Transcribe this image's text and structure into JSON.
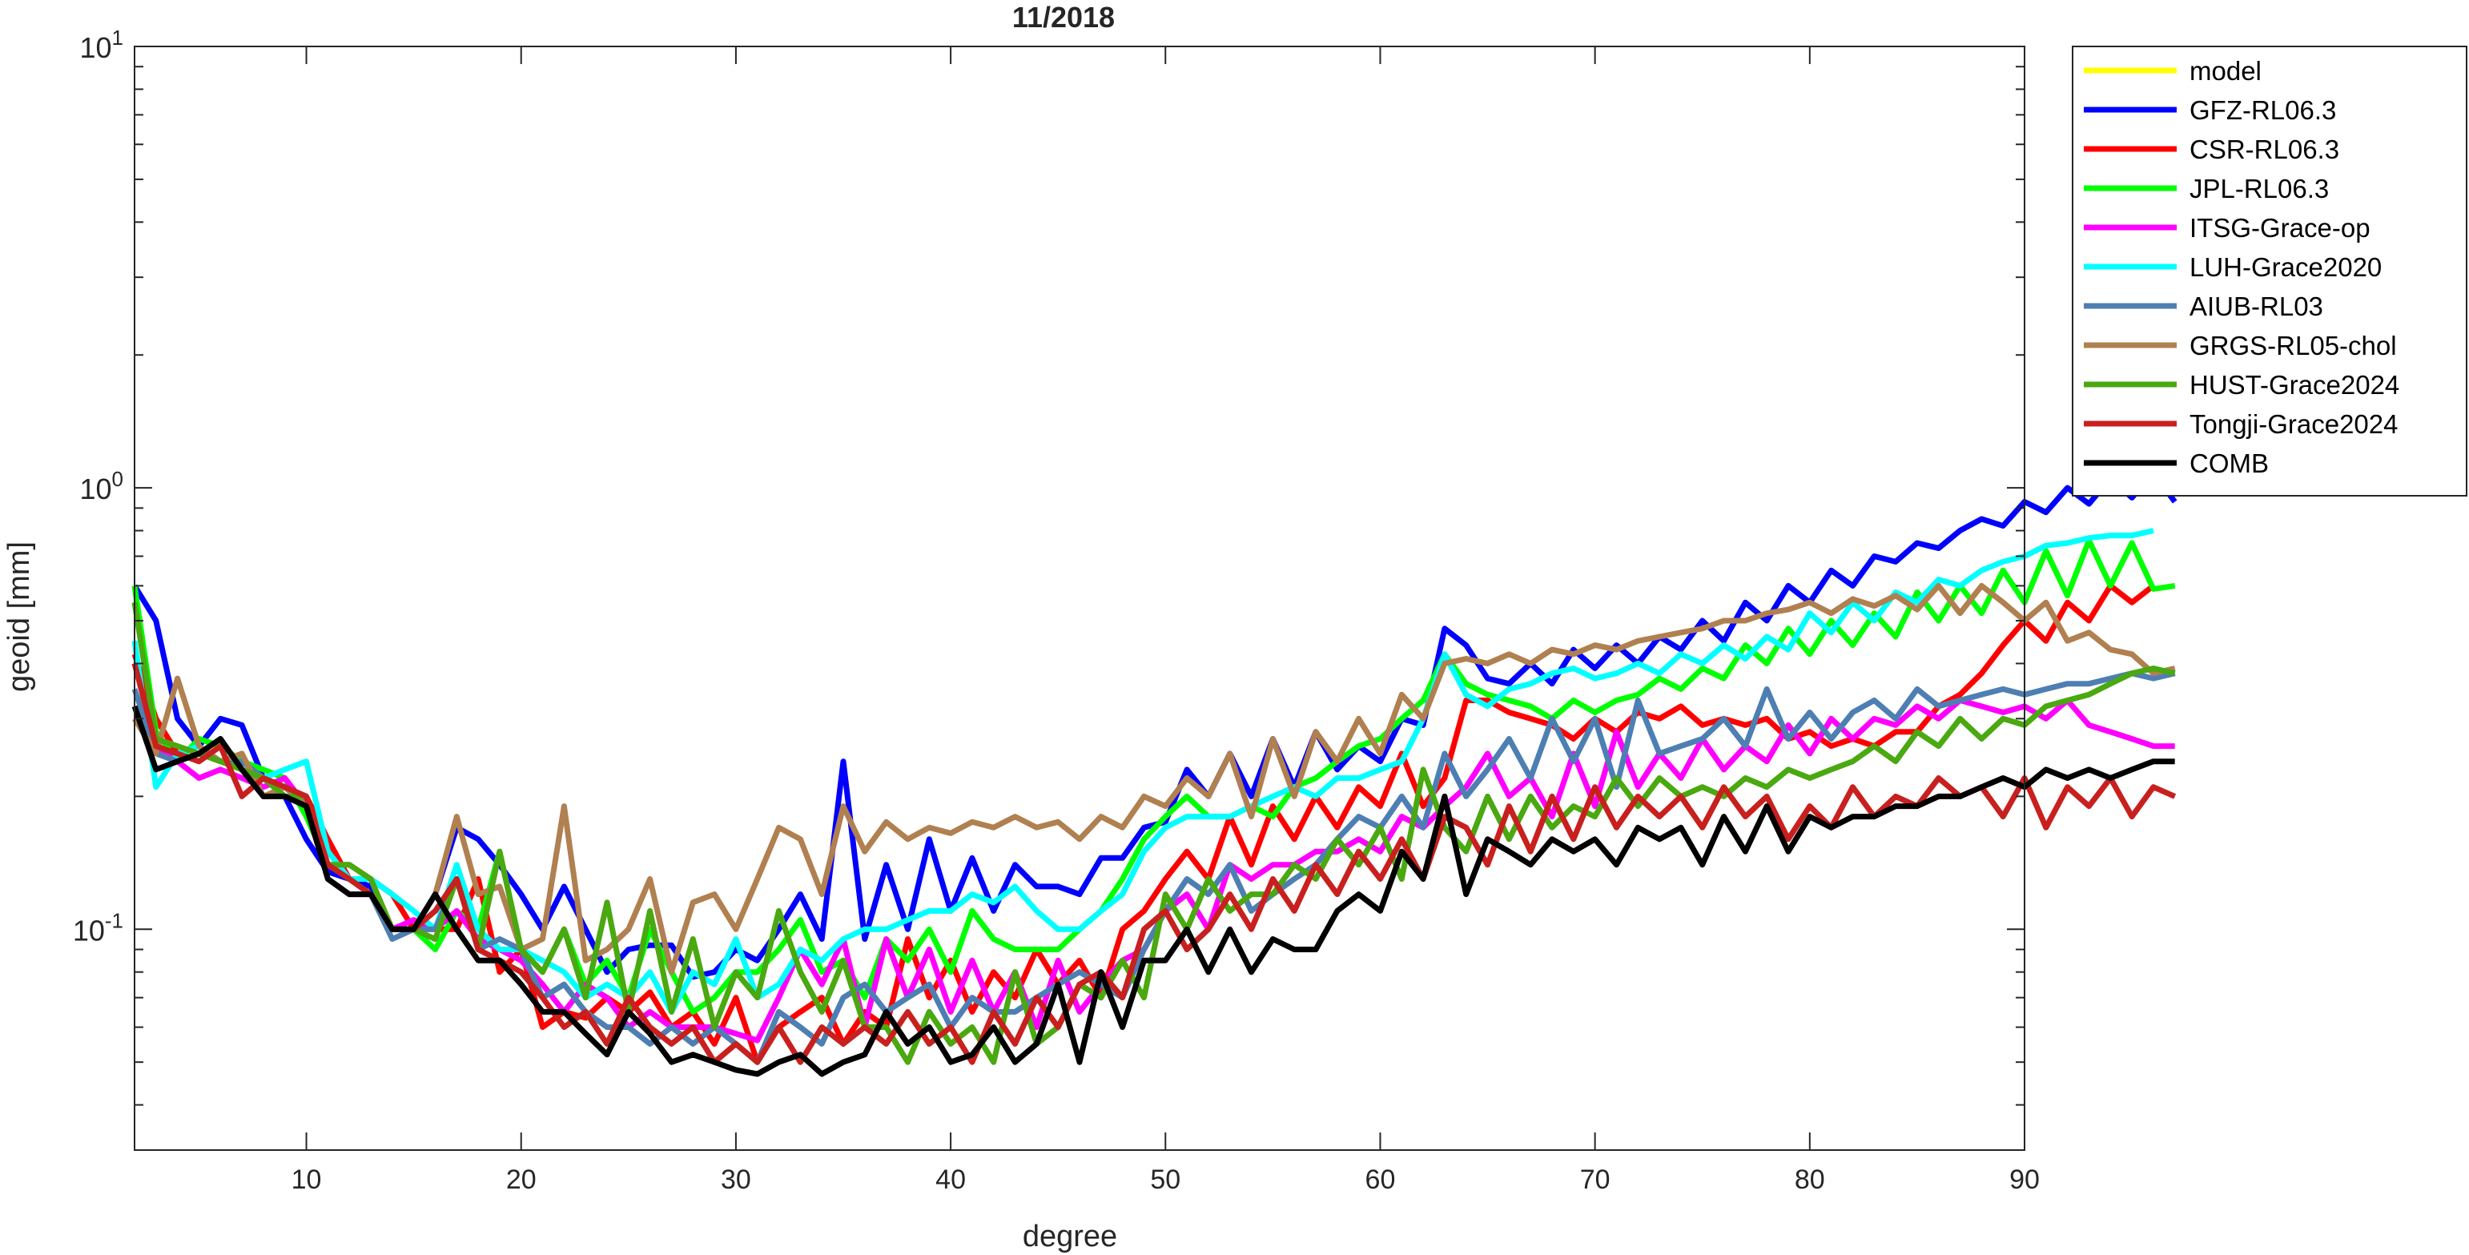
{
  "chart_data": {
    "type": "line",
    "title": "11/2018",
    "xlabel": "degree",
    "ylabel": "geoid [mm]",
    "xlim": [
      2,
      90
    ],
    "ylim": [
      0.0316,
      10
    ],
    "yscale": "log",
    "grid": false,
    "legend_position": "outside-top-right",
    "x_ticks": [
      "10",
      "20",
      "30",
      "40",
      "50",
      "60",
      "70",
      "80",
      "90"
    ],
    "y_ticks": [
      {
        "base": "10",
        "exp": "-1"
      },
      {
        "base": "10",
        "exp": "0"
      },
      {
        "base": "10",
        "exp": "1"
      }
    ],
    "x_start": 2,
    "series": [
      {
        "name": "model",
        "color": "#ffff00",
        "values": []
      },
      {
        "name": "GFZ-RL06.3",
        "color": "#0000ff",
        "values": [
          0.6,
          0.5,
          0.3,
          0.26,
          0.3,
          0.29,
          0.22,
          0.2,
          0.16,
          0.135,
          0.13,
          0.125,
          0.1,
          0.1,
          0.12,
          0.17,
          0.16,
          0.14,
          0.12,
          0.1,
          0.125,
          0.1,
          0.08,
          0.09,
          0.092,
          0.092,
          0.078,
          0.08,
          0.09,
          0.085,
          0.1,
          0.12,
          0.095,
          0.24,
          0.095,
          0.14,
          0.1,
          0.16,
          0.11,
          0.145,
          0.11,
          0.14,
          0.125,
          0.125,
          0.12,
          0.145,
          0.145,
          0.17,
          0.175,
          0.23,
          0.2,
          0.25,
          0.2,
          0.27,
          0.21,
          0.28,
          0.23,
          0.26,
          0.24,
          0.3,
          0.29,
          0.48,
          0.44,
          0.37,
          0.36,
          0.4,
          0.36,
          0.43,
          0.39,
          0.44,
          0.4,
          0.46,
          0.43,
          0.5,
          0.45,
          0.55,
          0.5,
          0.6,
          0.55,
          0.65,
          0.6,
          0.7,
          0.68,
          0.75,
          0.73,
          0.8,
          0.85,
          0.82,
          0.93,
          0.88,
          1.0,
          0.92,
          1.05,
          0.95,
          1.08,
          0.93
        ]
      },
      {
        "name": "CSR-RL06.3",
        "color": "#ff0000",
        "values": [
          0.42,
          0.3,
          0.25,
          0.24,
          0.26,
          0.24,
          0.22,
          0.21,
          0.2,
          0.16,
          0.13,
          0.13,
          0.12,
          0.1,
          0.1,
          0.1,
          0.13,
          0.08,
          0.09,
          0.06,
          0.065,
          0.063,
          0.07,
          0.065,
          0.072,
          0.06,
          0.065,
          0.055,
          0.07,
          0.05,
          0.06,
          0.065,
          0.07,
          0.055,
          0.065,
          0.06,
          0.095,
          0.07,
          0.085,
          0.065,
          0.08,
          0.07,
          0.09,
          0.075,
          0.085,
          0.07,
          0.1,
          0.11,
          0.13,
          0.15,
          0.13,
          0.18,
          0.14,
          0.19,
          0.16,
          0.2,
          0.17,
          0.21,
          0.19,
          0.25,
          0.19,
          0.22,
          0.33,
          0.33,
          0.31,
          0.3,
          0.29,
          0.27,
          0.3,
          0.28,
          0.31,
          0.3,
          0.32,
          0.29,
          0.3,
          0.29,
          0.3,
          0.27,
          0.28,
          0.26,
          0.27,
          0.26,
          0.28,
          0.28,
          0.32,
          0.34,
          0.38,
          0.44,
          0.5,
          0.45,
          0.55,
          0.5,
          0.6,
          0.55,
          0.6
        ]
      },
      {
        "name": "JPL-RL06.3",
        "color": "#00ff00",
        "values": [
          0.6,
          0.28,
          0.24,
          0.27,
          0.26,
          0.24,
          0.23,
          0.22,
          0.18,
          0.14,
          0.13,
          0.12,
          0.1,
          0.1,
          0.09,
          0.11,
          0.1,
          0.15,
          0.09,
          0.08,
          0.1,
          0.075,
          0.085,
          0.07,
          0.1,
          0.08,
          0.065,
          0.07,
          0.08,
          0.08,
          0.09,
          0.105,
          0.08,
          0.085,
          0.07,
          0.095,
          0.085,
          0.1,
          0.08,
          0.11,
          0.095,
          0.09,
          0.09,
          0.09,
          0.1,
          0.11,
          0.13,
          0.16,
          0.18,
          0.2,
          0.18,
          0.18,
          0.19,
          0.18,
          0.21,
          0.22,
          0.24,
          0.26,
          0.27,
          0.3,
          0.33,
          0.42,
          0.36,
          0.34,
          0.33,
          0.32,
          0.3,
          0.33,
          0.31,
          0.33,
          0.34,
          0.37,
          0.35,
          0.39,
          0.37,
          0.44,
          0.4,
          0.48,
          0.42,
          0.5,
          0.44,
          0.52,
          0.46,
          0.58,
          0.5,
          0.6,
          0.52,
          0.65,
          0.55,
          0.72,
          0.57,
          0.76,
          0.6,
          0.75,
          0.59,
          0.6
        ]
      },
      {
        "name": "ITSG-Grace-op",
        "color": "#ff00ff",
        "values": [
          0.4,
          0.26,
          0.24,
          0.22,
          0.23,
          0.22,
          0.21,
          0.22,
          0.19,
          0.13,
          0.12,
          0.12,
          0.1,
          0.105,
          0.1,
          0.11,
          0.095,
          0.09,
          0.085,
          0.075,
          0.065,
          0.075,
          0.07,
          0.06,
          0.065,
          0.06,
          0.06,
          0.06,
          0.058,
          0.056,
          0.07,
          0.09,
          0.075,
          0.095,
          0.06,
          0.095,
          0.07,
          0.09,
          0.065,
          0.085,
          0.065,
          0.08,
          0.06,
          0.085,
          0.065,
          0.075,
          0.085,
          0.09,
          0.11,
          0.12,
          0.1,
          0.14,
          0.13,
          0.14,
          0.14,
          0.15,
          0.15,
          0.16,
          0.15,
          0.18,
          0.17,
          0.19,
          0.21,
          0.25,
          0.2,
          0.22,
          0.18,
          0.25,
          0.19,
          0.28,
          0.21,
          0.25,
          0.22,
          0.27,
          0.23,
          0.26,
          0.24,
          0.29,
          0.25,
          0.3,
          0.27,
          0.3,
          0.29,
          0.32,
          0.3,
          0.33,
          0.32,
          0.31,
          0.32,
          0.3,
          0.33,
          0.29,
          0.28,
          0.27,
          0.26,
          0.26
        ]
      },
      {
        "name": "LUH-Grace2020",
        "color": "#00ffff",
        "values": [
          0.45,
          0.21,
          0.25,
          0.26,
          0.24,
          0.24,
          0.22,
          0.23,
          0.24,
          0.15,
          0.13,
          0.13,
          0.12,
          0.11,
          0.1,
          0.14,
          0.1,
          0.09,
          0.09,
          0.085,
          0.08,
          0.07,
          0.075,
          0.07,
          0.08,
          0.065,
          0.08,
          0.075,
          0.095,
          0.07,
          0.075,
          0.09,
          0.085,
          0.095,
          0.1,
          0.1,
          0.105,
          0.11,
          0.11,
          0.12,
          0.115,
          0.125,
          0.11,
          0.1,
          0.1,
          0.11,
          0.12,
          0.15,
          0.17,
          0.18,
          0.18,
          0.18,
          0.19,
          0.2,
          0.21,
          0.2,
          0.22,
          0.22,
          0.23,
          0.24,
          0.3,
          0.42,
          0.34,
          0.32,
          0.35,
          0.36,
          0.38,
          0.39,
          0.37,
          0.38,
          0.4,
          0.38,
          0.42,
          0.4,
          0.44,
          0.41,
          0.46,
          0.43,
          0.52,
          0.47,
          0.55,
          0.5,
          0.58,
          0.55,
          0.62,
          0.6,
          0.65,
          0.68,
          0.7,
          0.74,
          0.75,
          0.77,
          0.78,
          0.78,
          0.8
        ]
      },
      {
        "name": "AIUB-RL03",
        "color": "#4e7fb3",
        "values": [
          0.35,
          0.25,
          0.24,
          0.25,
          0.24,
          0.24,
          0.22,
          0.21,
          0.19,
          0.14,
          0.13,
          0.12,
          0.095,
          0.1,
          0.1,
          0.13,
          0.09,
          0.095,
          0.09,
          0.07,
          0.075,
          0.065,
          0.06,
          0.06,
          0.055,
          0.06,
          0.055,
          0.06,
          0.055,
          0.05,
          0.065,
          0.06,
          0.055,
          0.07,
          0.075,
          0.065,
          0.07,
          0.075,
          0.06,
          0.07,
          0.065,
          0.065,
          0.07,
          0.075,
          0.08,
          0.075,
          0.07,
          0.09,
          0.11,
          0.13,
          0.12,
          0.14,
          0.11,
          0.12,
          0.13,
          0.14,
          0.16,
          0.18,
          0.17,
          0.2,
          0.17,
          0.25,
          0.2,
          0.23,
          0.27,
          0.22,
          0.3,
          0.24,
          0.3,
          0.21,
          0.33,
          0.25,
          0.26,
          0.27,
          0.3,
          0.26,
          0.35,
          0.27,
          0.31,
          0.27,
          0.31,
          0.33,
          0.3,
          0.35,
          0.32,
          0.33,
          0.34,
          0.35,
          0.34,
          0.35,
          0.36,
          0.36,
          0.37,
          0.38,
          0.37,
          0.38
        ]
      },
      {
        "name": "GRGS-RL05-chol",
        "color": "#b08050",
        "values": [
          0.3,
          0.25,
          0.37,
          0.26,
          0.24,
          0.25,
          0.2,
          0.21,
          0.19,
          0.14,
          0.14,
          0.13,
          0.1,
          0.1,
          0.12,
          0.18,
          0.12,
          0.125,
          0.09,
          0.095,
          0.19,
          0.085,
          0.09,
          0.1,
          0.13,
          0.08,
          0.115,
          0.12,
          0.1,
          0.13,
          0.17,
          0.16,
          0.12,
          0.19,
          0.15,
          0.175,
          0.16,
          0.17,
          0.165,
          0.175,
          0.17,
          0.18,
          0.17,
          0.175,
          0.16,
          0.18,
          0.17,
          0.2,
          0.19,
          0.22,
          0.2,
          0.25,
          0.18,
          0.27,
          0.2,
          0.28,
          0.24,
          0.3,
          0.25,
          0.34,
          0.3,
          0.4,
          0.41,
          0.4,
          0.42,
          0.4,
          0.43,
          0.42,
          0.44,
          0.43,
          0.45,
          0.46,
          0.47,
          0.48,
          0.5,
          0.5,
          0.52,
          0.53,
          0.55,
          0.52,
          0.56,
          0.54,
          0.57,
          0.53,
          0.6,
          0.52,
          0.6,
          0.55,
          0.5,
          0.55,
          0.45,
          0.47,
          0.43,
          0.42,
          0.38,
          0.39
        ]
      },
      {
        "name": "HUST-Grace2024",
        "color": "#4aa810",
        "values": [
          0.55,
          0.27,
          0.26,
          0.25,
          0.24,
          0.23,
          0.22,
          0.2,
          0.2,
          0.14,
          0.14,
          0.13,
          0.1,
          0.1,
          0.095,
          0.13,
          0.09,
          0.15,
          0.09,
          0.08,
          0.1,
          0.07,
          0.115,
          0.065,
          0.11,
          0.065,
          0.095,
          0.06,
          0.08,
          0.07,
          0.11,
          0.08,
          0.065,
          0.085,
          0.06,
          0.06,
          0.05,
          0.065,
          0.055,
          0.06,
          0.05,
          0.08,
          0.055,
          0.06,
          0.075,
          0.07,
          0.085,
          0.07,
          0.12,
          0.1,
          0.13,
          0.11,
          0.12,
          0.12,
          0.14,
          0.13,
          0.16,
          0.14,
          0.17,
          0.13,
          0.23,
          0.17,
          0.15,
          0.2,
          0.16,
          0.2,
          0.17,
          0.19,
          0.18,
          0.22,
          0.19,
          0.22,
          0.2,
          0.21,
          0.2,
          0.22,
          0.21,
          0.23,
          0.22,
          0.23,
          0.24,
          0.26,
          0.24,
          0.28,
          0.26,
          0.3,
          0.27,
          0.3,
          0.29,
          0.32,
          0.33,
          0.34,
          0.36,
          0.38,
          0.39,
          0.38
        ]
      },
      {
        "name": "Tongji-Grace2024",
        "color": "#c8201e",
        "values": [
          0.4,
          0.26,
          0.25,
          0.24,
          0.26,
          0.2,
          0.22,
          0.21,
          0.2,
          0.14,
          0.13,
          0.12,
          0.1,
          0.1,
          0.11,
          0.13,
          0.09,
          0.085,
          0.08,
          0.07,
          0.06,
          0.065,
          0.055,
          0.07,
          0.06,
          0.055,
          0.06,
          0.05,
          0.055,
          0.05,
          0.06,
          0.05,
          0.06,
          0.055,
          0.06,
          0.055,
          0.065,
          0.055,
          0.06,
          0.05,
          0.065,
          0.055,
          0.07,
          0.06,
          0.075,
          0.08,
          0.07,
          0.1,
          0.11,
          0.09,
          0.1,
          0.12,
          0.1,
          0.13,
          0.11,
          0.14,
          0.12,
          0.15,
          0.13,
          0.16,
          0.13,
          0.18,
          0.17,
          0.14,
          0.19,
          0.15,
          0.2,
          0.16,
          0.21,
          0.17,
          0.2,
          0.18,
          0.2,
          0.17,
          0.21,
          0.18,
          0.2,
          0.16,
          0.19,
          0.17,
          0.21,
          0.18,
          0.2,
          0.19,
          0.22,
          0.2,
          0.21,
          0.18,
          0.22,
          0.17,
          0.21,
          0.19,
          0.22,
          0.18,
          0.21,
          0.2
        ]
      },
      {
        "name": "COMB",
        "color": "#000000",
        "values": [
          0.32,
          0.23,
          0.24,
          0.25,
          0.27,
          0.23,
          0.2,
          0.2,
          0.19,
          0.13,
          0.12,
          0.12,
          0.1,
          0.1,
          0.12,
          0.1,
          0.085,
          0.085,
          0.075,
          0.065,
          0.065,
          0.058,
          0.052,
          0.065,
          0.058,
          0.05,
          0.052,
          0.05,
          0.048,
          0.047,
          0.05,
          0.052,
          0.047,
          0.05,
          0.052,
          0.065,
          0.055,
          0.06,
          0.05,
          0.052,
          0.06,
          0.05,
          0.055,
          0.075,
          0.05,
          0.08,
          0.06,
          0.085,
          0.085,
          0.1,
          0.08,
          0.1,
          0.08,
          0.095,
          0.09,
          0.09,
          0.11,
          0.12,
          0.11,
          0.15,
          0.13,
          0.2,
          0.12,
          0.16,
          0.15,
          0.14,
          0.16,
          0.15,
          0.16,
          0.14,
          0.17,
          0.16,
          0.17,
          0.14,
          0.18,
          0.15,
          0.19,
          0.15,
          0.18,
          0.17,
          0.18,
          0.18,
          0.19,
          0.19,
          0.2,
          0.2,
          0.21,
          0.22,
          0.21,
          0.23,
          0.22,
          0.23,
          0.22,
          0.23,
          0.24,
          0.24
        ]
      }
    ]
  }
}
